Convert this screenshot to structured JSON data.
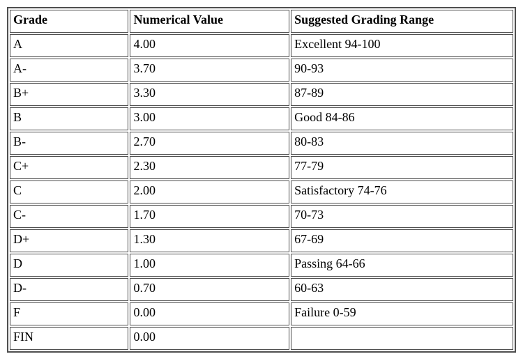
{
  "table": {
    "title": "grading-scale",
    "columns": [
      "Grade",
      "Numerical Value",
      "Suggested Grading Range"
    ],
    "rows": [
      [
        "A",
        "4.00",
        "Excellent 94-100"
      ],
      [
        "A-",
        "3.70",
        "90-93"
      ],
      [
        "B+",
        "3.30",
        "87-89"
      ],
      [
        "B",
        "3.00",
        "Good 84-86"
      ],
      [
        "B-",
        "2.70",
        "80-83"
      ],
      [
        "C+",
        "2.30",
        "77-79"
      ],
      [
        "C",
        "2.00",
        "Satisfactory 74-76"
      ],
      [
        "C-",
        "1.70",
        "70-73"
      ],
      [
        "D+",
        "1.30",
        "67-69"
      ],
      [
        "D",
        "1.00",
        "Passing 64-66"
      ],
      [
        "D-",
        "0.70",
        "60-63"
      ],
      [
        "F",
        "0.00",
        "Failure 0-59"
      ],
      [
        "FIN",
        "0.00",
        ""
      ]
    ],
    "colors": {
      "border": "#4f4f4f",
      "text": "#000000",
      "background": "#ffffff"
    }
  }
}
